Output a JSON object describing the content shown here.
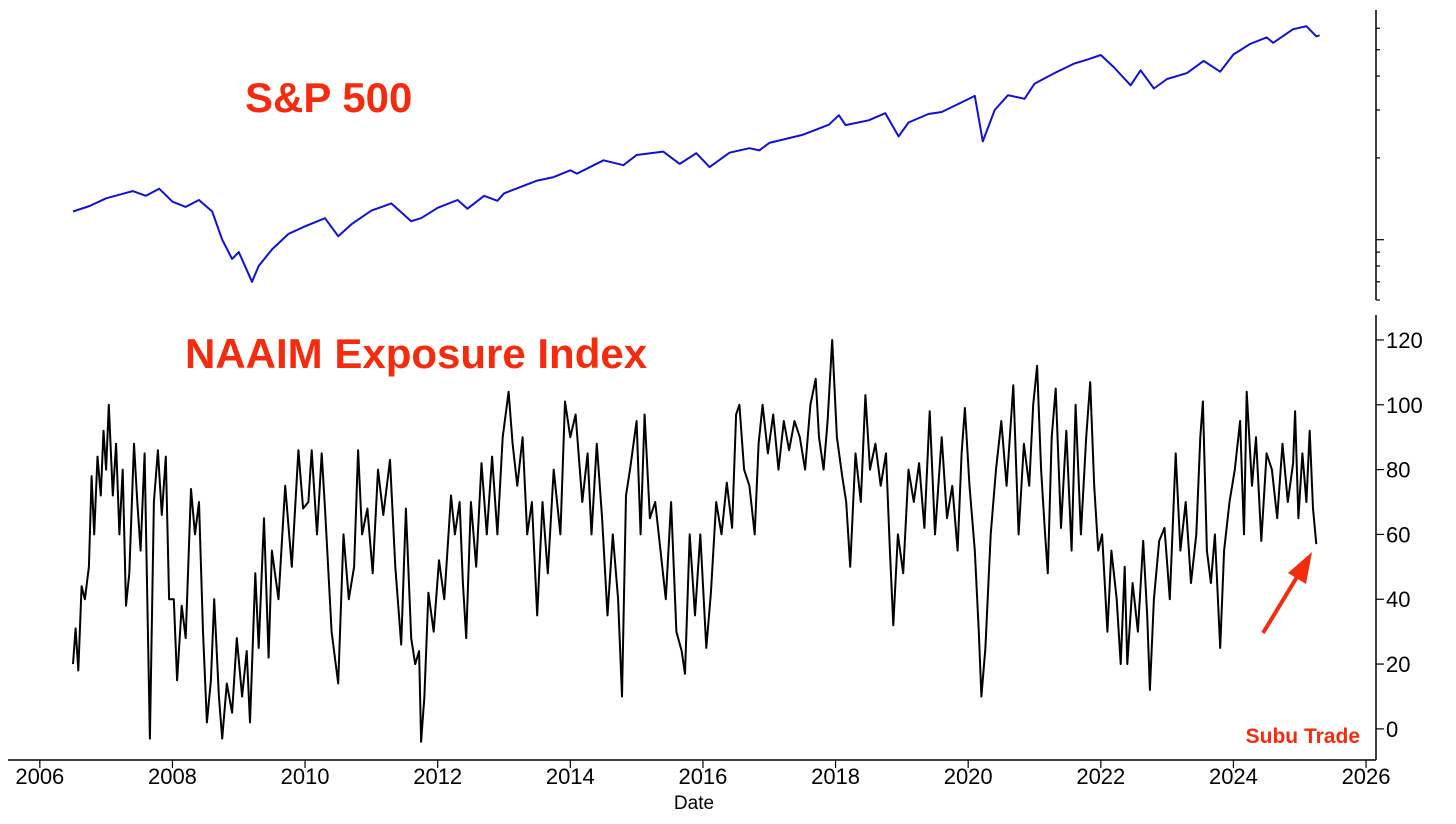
{
  "chart_data": [
    {
      "type": "line",
      "title": "S&P 500",
      "log_scale": true,
      "color": "#1010d8",
      "xlim": [
        2005.52,
        2026.15
      ],
      "ylim": [
        600,
        7000
      ],
      "yticks": [
        600,
        700,
        800,
        900,
        1000,
        2000,
        3000,
        4000,
        5000,
        6000
      ],
      "x": [
        2006.5,
        2006.75,
        2007.0,
        2007.4,
        2007.6,
        2007.8,
        2008.0,
        2008.2,
        2008.4,
        2008.6,
        2008.75,
        2008.9,
        2009.0,
        2009.2,
        2009.3,
        2009.5,
        2009.75,
        2010.0,
        2010.3,
        2010.5,
        2010.7,
        2011.0,
        2011.3,
        2011.6,
        2011.75,
        2012.0,
        2012.3,
        2012.45,
        2012.7,
        2012.9,
        2013.0,
        2013.3,
        2013.5,
        2013.75,
        2014.0,
        2014.1,
        2014.5,
        2014.8,
        2015.0,
        2015.4,
        2015.65,
        2015.9,
        2016.1,
        2016.4,
        2016.7,
        2016.85,
        2017.0,
        2017.5,
        2017.9,
        2018.05,
        2018.15,
        2018.5,
        2018.75,
        2018.95,
        2019.1,
        2019.4,
        2019.6,
        2019.9,
        2020.1,
        2020.22,
        2020.4,
        2020.6,
        2020.85,
        2021.0,
        2021.3,
        2021.6,
        2021.8,
        2022.0,
        2022.2,
        2022.45,
        2022.6,
        2022.8,
        2023.0,
        2023.3,
        2023.55,
        2023.8,
        2024.0,
        2024.25,
        2024.5,
        2024.6,
        2024.9,
        2025.1,
        2025.25,
        2025.3
      ],
      "values": [
        1270,
        1330,
        1420,
        1510,
        1450,
        1540,
        1380,
        1320,
        1400,
        1270,
        1000,
        850,
        900,
        700,
        800,
        920,
        1050,
        1120,
        1200,
        1030,
        1140,
        1280,
        1360,
        1170,
        1200,
        1310,
        1400,
        1300,
        1450,
        1390,
        1480,
        1580,
        1650,
        1700,
        1800,
        1750,
        1960,
        1880,
        2050,
        2110,
        1900,
        2080,
        1850,
        2090,
        2170,
        2130,
        2270,
        2430,
        2650,
        2870,
        2640,
        2750,
        2920,
        2400,
        2700,
        2900,
        2950,
        3200,
        3380,
        2300,
        3000,
        3400,
        3300,
        3750,
        4100,
        4450,
        4600,
        4780,
        4300,
        3700,
        4200,
        3600,
        3900,
        4100,
        4550,
        4150,
        4800,
        5250,
        5550,
        5300,
        5950,
        6100,
        5600,
        5650
      ]
    },
    {
      "type": "line",
      "title": "NAAIM Exposure Index",
      "xlabel": "Date",
      "annotation": "Subu Trade",
      "color": "#000000",
      "xlim": [
        2005.52,
        2026.15
      ],
      "ylim": [
        -9.6,
        127.7
      ],
      "xticks": [
        2006,
        2008,
        2010,
        2012,
        2014,
        2016,
        2018,
        2020,
        2022,
        2024,
        2026
      ],
      "yticks": [
        0,
        20,
        40,
        60,
        80,
        100,
        120
      ],
      "x": [
        2006.5,
        2006.54,
        2006.58,
        2006.63,
        2006.68,
        2006.74,
        2006.78,
        2006.82,
        2006.87,
        2006.92,
        2006.96,
        2007.0,
        2007.04,
        2007.1,
        2007.15,
        2007.2,
        2007.25,
        2007.3,
        2007.35,
        2007.42,
        2007.47,
        2007.52,
        2007.58,
        2007.62,
        2007.66,
        2007.72,
        2007.78,
        2007.84,
        2007.9,
        2007.95,
        2008.02,
        2008.07,
        2008.14,
        2008.2,
        2008.28,
        2008.34,
        2008.4,
        2008.46,
        2008.52,
        2008.58,
        2008.63,
        2008.7,
        2008.75,
        2008.82,
        2008.9,
        2008.97,
        2009.05,
        2009.12,
        2009.17,
        2009.25,
        2009.3,
        2009.38,
        2009.45,
        2009.5,
        2009.6,
        2009.7,
        2009.8,
        2009.9,
        2009.97,
        2010.05,
        2010.1,
        2010.18,
        2010.25,
        2010.3,
        2010.4,
        2010.5,
        2010.58,
        2010.66,
        2010.74,
        2010.8,
        2010.86,
        2010.94,
        2011.02,
        2011.1,
        2011.18,
        2011.28,
        2011.36,
        2011.45,
        2011.52,
        2011.6,
        2011.66,
        2011.72,
        2011.75,
        2011.8,
        2011.86,
        2011.94,
        2012.02,
        2012.1,
        2012.2,
        2012.26,
        2012.33,
        2012.38,
        2012.43,
        2012.5,
        2012.58,
        2012.66,
        2012.74,
        2012.82,
        2012.9,
        2012.98,
        2013.07,
        2013.13,
        2013.2,
        2013.28,
        2013.35,
        2013.42,
        2013.5,
        2013.58,
        2013.66,
        2013.75,
        2013.85,
        2013.92,
        2014.0,
        2014.08,
        2014.18,
        2014.26,
        2014.32,
        2014.4,
        2014.48,
        2014.56,
        2014.64,
        2014.72,
        2014.78,
        2014.84,
        2014.9,
        2015.0,
        2015.06,
        2015.12,
        2015.2,
        2015.28,
        2015.36,
        2015.44,
        2015.52,
        2015.6,
        2015.68,
        2015.73,
        2015.8,
        2015.88,
        2015.96,
        2016.05,
        2016.12,
        2016.2,
        2016.28,
        2016.36,
        2016.44,
        2016.5,
        2016.55,
        2016.62,
        2016.7,
        2016.78,
        2016.84,
        2016.9,
        2016.98,
        2017.06,
        2017.14,
        2017.22,
        2017.3,
        2017.38,
        2017.46,
        2017.54,
        2017.62,
        2017.7,
        2017.75,
        2017.82,
        2017.88,
        2017.95,
        2018.02,
        2018.1,
        2018.16,
        2018.22,
        2018.3,
        2018.38,
        2018.45,
        2018.52,
        2018.6,
        2018.68,
        2018.76,
        2018.82,
        2018.87,
        2018.94,
        2019.02,
        2019.1,
        2019.18,
        2019.26,
        2019.34,
        2019.42,
        2019.5,
        2019.6,
        2019.68,
        2019.76,
        2019.84,
        2019.9,
        2019.95,
        2020.02,
        2020.1,
        2020.16,
        2020.2,
        2020.26,
        2020.34,
        2020.42,
        2020.5,
        2020.58,
        2020.68,
        2020.76,
        2020.84,
        2020.92,
        2020.98,
        2021.04,
        2021.1,
        2021.16,
        2021.2,
        2021.26,
        2021.32,
        2021.4,
        2021.48,
        2021.56,
        2021.62,
        2021.7,
        2021.78,
        2021.84,
        2021.9,
        2021.96,
        2022.02,
        2022.1,
        2022.16,
        2022.24,
        2022.3,
        2022.36,
        2022.4,
        2022.48,
        2022.56,
        2022.64,
        2022.7,
        2022.74,
        2022.8,
        2022.88,
        2022.96,
        2023.04,
        2023.13,
        2023.2,
        2023.28,
        2023.36,
        2023.44,
        2023.5,
        2023.54,
        2023.6,
        2023.66,
        2023.72,
        2023.8,
        2023.86,
        2023.94,
        2024.02,
        2024.1,
        2024.16,
        2024.2,
        2024.28,
        2024.34,
        2024.42,
        2024.5,
        2024.58,
        2024.66,
        2024.74,
        2024.82,
        2024.9,
        2024.93,
        2024.98,
        2025.04,
        2025.1,
        2025.15,
        2025.2,
        2025.25
      ],
      "values": [
        20,
        31,
        18,
        44,
        40,
        50,
        78,
        60,
        84,
        72,
        92,
        80,
        100,
        72,
        88,
        60,
        80,
        38,
        48,
        88,
        70,
        55,
        85,
        40,
        -3,
        70,
        86,
        66,
        84,
        40,
        40,
        15,
        38,
        28,
        74,
        60,
        70,
        30,
        2,
        15,
        40,
        10,
        -3,
        14,
        5,
        28,
        10,
        24,
        2,
        48,
        25,
        65,
        22,
        55,
        40,
        75,
        50,
        86,
        68,
        70,
        86,
        60,
        85,
        68,
        30,
        14,
        60,
        40,
        50,
        86,
        60,
        68,
        48,
        80,
        66,
        83,
        50,
        26,
        68,
        28,
        20,
        24,
        -4,
        10,
        42,
        30,
        52,
        40,
        72,
        60,
        70,
        45,
        28,
        70,
        50,
        82,
        60,
        84,
        60,
        90,
        104,
        88,
        75,
        90,
        60,
        70,
        35,
        70,
        48,
        80,
        60,
        101,
        90,
        97,
        70,
        85,
        60,
        88,
        65,
        35,
        60,
        40,
        10,
        72,
        80,
        95,
        60,
        97,
        65,
        70,
        55,
        40,
        70,
        30,
        24,
        17,
        60,
        35,
        60,
        25,
        42,
        70,
        60,
        76,
        62,
        97,
        100,
        80,
        75,
        60,
        88,
        100,
        85,
        97,
        80,
        95,
        86,
        95,
        90,
        80,
        100,
        108,
        90,
        80,
        95,
        120,
        90,
        78,
        70,
        50,
        85,
        70,
        103,
        80,
        88,
        75,
        85,
        55,
        32,
        60,
        48,
        80,
        70,
        82,
        62,
        98,
        60,
        90,
        65,
        75,
        55,
        85,
        99,
        75,
        55,
        30,
        10,
        25,
        60,
        80,
        95,
        75,
        106,
        60,
        88,
        75,
        100,
        112,
        80,
        60,
        48,
        90,
        105,
        62,
        92,
        55,
        100,
        60,
        90,
        107,
        75,
        55,
        60,
        30,
        55,
        40,
        20,
        50,
        20,
        45,
        30,
        58,
        35,
        12,
        40,
        58,
        62,
        40,
        85,
        55,
        70,
        45,
        60,
        90,
        101,
        55,
        45,
        60,
        25,
        55,
        70,
        80,
        95,
        60,
        104,
        75,
        90,
        58,
        85,
        80,
        65,
        88,
        70,
        82,
        98,
        65,
        85,
        70,
        92,
        68,
        57
      ]
    }
  ]
}
